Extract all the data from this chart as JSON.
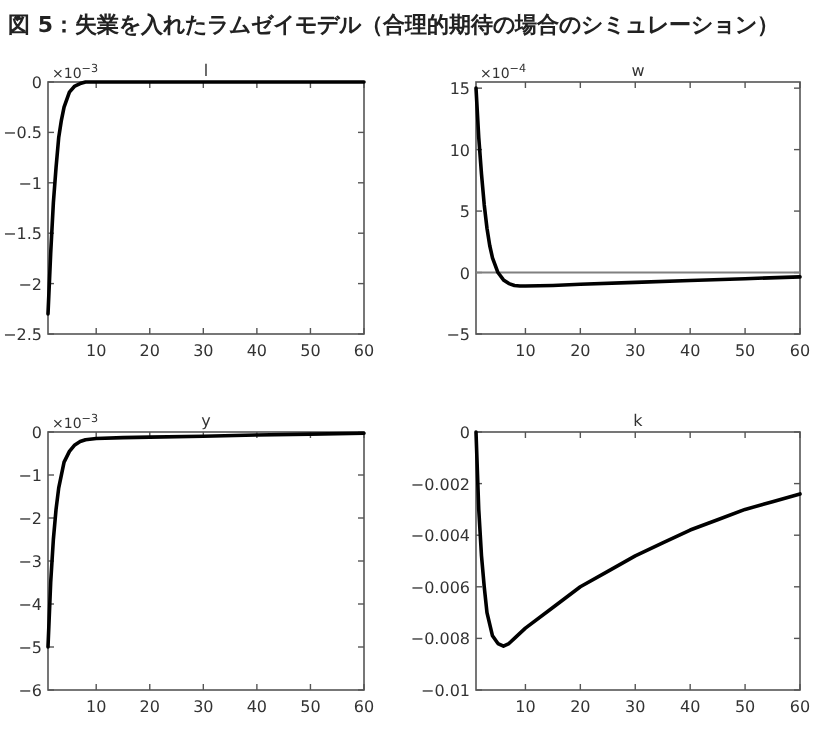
{
  "chart_data": [
    {
      "type": "line",
      "title": "l",
      "annotations": [
        "図 5：失業を入れたラムゼイモデル（合理的期待の場合のシミュレーション）",
        "×10$^{−3}$"
      ],
      "x": [
        1,
        1.5,
        2,
        2.5,
        3,
        3.5,
        4,
        5,
        6,
        7,
        8,
        10,
        20,
        30,
        40,
        50,
        60
      ],
      "series": [
        {
          "color": "#000000",
          "values": [
            -2.3,
            -1.7,
            -1.2,
            -0.85,
            -0.55,
            -0.38,
            -0.25,
            -0.1,
            -0.04,
            -0.015,
            0,
            0,
            0,
            0,
            0,
            0,
            0
          ]
        }
      ],
      "xlim": [
        1,
        60
      ],
      "ylim": [
        -2.5,
        0
      ],
      "xticks": [
        10,
        20,
        30,
        40,
        50,
        60
      ],
      "yticks": [
        -2.5,
        -2,
        -1.5,
        -1,
        -0.5,
        0
      ]
    },
    {
      "type": "line",
      "title": "w",
      "annotations": [
        "×10$^{−4}$"
      ],
      "x": [
        1,
        1.5,
        2,
        2.5,
        3,
        3.5,
        4,
        5,
        6,
        7,
        8,
        9,
        10,
        15,
        20,
        30,
        40,
        50,
        60
      ],
      "series": [
        {
          "color": "#000000",
          "values": [
            15,
            11,
            8,
            5.5,
            3.6,
            2.2,
            1.2,
            0,
            -0.6,
            -0.9,
            -1.05,
            -1.1,
            -1.1,
            -1.05,
            -0.95,
            -0.8,
            -0.65,
            -0.5,
            -0.35
          ]
        }
      ],
      "xlim": [
        1,
        60
      ],
      "ylim": [
        -5,
        15.5
      ],
      "xticks": [
        10,
        20,
        30,
        40,
        50,
        60
      ],
      "yticks": [
        -5,
        0,
        5,
        10,
        15
      ],
      "ref_lines": [
        {
          "axis": "y",
          "value": 0,
          "color": "#808080"
        }
      ]
    },
    {
      "type": "line",
      "title": "y",
      "annotations": [
        "×10$^{−3}$"
      ],
      "x": [
        1,
        1.5,
        2,
        2.5,
        3,
        4,
        5,
        6,
        7,
        8,
        10,
        15,
        20,
        30,
        40,
        50,
        60
      ],
      "series": [
        {
          "color": "#000000",
          "values": [
            -5,
            -3.5,
            -2.5,
            -1.8,
            -1.3,
            -0.7,
            -0.45,
            -0.3,
            -0.22,
            -0.18,
            -0.15,
            -0.13,
            -0.12,
            -0.1,
            -0.07,
            -0.05,
            -0.03
          ]
        }
      ],
      "xlim": [
        1,
        60
      ],
      "ylim": [
        -6,
        0
      ],
      "xticks": [
        10,
        20,
        30,
        40,
        50,
        60
      ],
      "yticks": [
        -6,
        -5,
        -4,
        -3,
        -2,
        -1,
        0
      ]
    },
    {
      "type": "line",
      "title": "k",
      "x": [
        1,
        1.5,
        2,
        2.5,
        3,
        4,
        5,
        6,
        7,
        8,
        10,
        15,
        20,
        25,
        30,
        35,
        40,
        45,
        50,
        55,
        60
      ],
      "series": [
        {
          "color": "#000000",
          "values": [
            0,
            -0.003,
            -0.0048,
            -0.006,
            -0.007,
            -0.0079,
            -0.0082,
            -0.0083,
            -0.0082,
            -0.008,
            -0.0076,
            -0.0068,
            -0.006,
            -0.0054,
            -0.0048,
            -0.0043,
            -0.0038,
            -0.0034,
            -0.003,
            -0.0027,
            -0.0024
          ]
        }
      ],
      "xlim": [
        1,
        60
      ],
      "ylim": [
        -0.01,
        0
      ],
      "xticks": [
        10,
        20,
        30,
        40,
        50,
        60
      ],
      "yticks": [
        -0.01,
        -0.008,
        -0.006,
        -0.004,
        -0.002,
        0
      ]
    }
  ]
}
